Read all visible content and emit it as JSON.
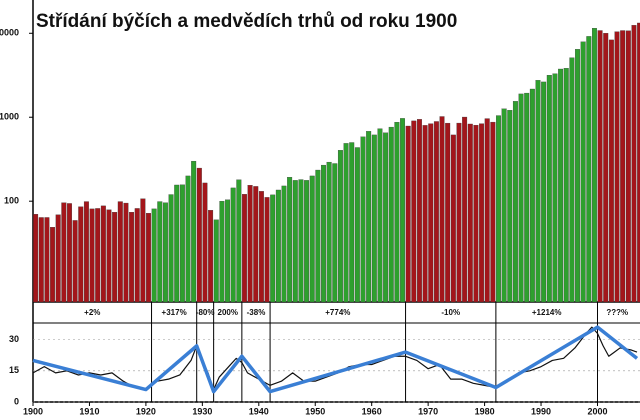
{
  "chart_data": [
    {
      "type": "bar",
      "title": "Střídání býčích a medvědích trhů od roku 1900",
      "log": true,
      "xlim": [
        1900,
        2007
      ],
      "ylim": [
        6.3,
        20000
      ],
      "yticks": [
        100,
        1000,
        10000
      ],
      "colors": {
        "up": "#2ea02e",
        "down": "#a3161b"
      },
      "x": [
        1900,
        1901,
        1902,
        1903,
        1904,
        1905,
        1906,
        1907,
        1908,
        1909,
        1910,
        1911,
        1912,
        1913,
        1914,
        1915,
        1916,
        1917,
        1918,
        1919,
        1920,
        1921,
        1922,
        1923,
        1924,
        1925,
        1926,
        1927,
        1928,
        1929,
        1930,
        1931,
        1932,
        1933,
        1934,
        1935,
        1936,
        1937,
        1938,
        1939,
        1940,
        1941,
        1942,
        1943,
        1944,
        1945,
        1946,
        1947,
        1948,
        1949,
        1950,
        1951,
        1952,
        1953,
        1954,
        1955,
        1956,
        1957,
        1958,
        1959,
        1960,
        1961,
        1962,
        1963,
        1964,
        1965,
        1966,
        1967,
        1968,
        1969,
        1970,
        1971,
        1972,
        1973,
        1974,
        1975,
        1976,
        1977,
        1978,
        1979,
        1980,
        1981,
        1982,
        1983,
        1984,
        1985,
        1986,
        1987,
        1988,
        1989,
        1990,
        1991,
        1992,
        1993,
        1994,
        1995,
        1996,
        1997,
        1998,
        1999,
        2000,
        2001,
        2002,
        2003,
        2004,
        2005,
        2006,
        2007
      ],
      "values": [
        70,
        64,
        64,
        49,
        69,
        96,
        94,
        59,
        86,
        99,
        81,
        82,
        88,
        79,
        74,
        99,
        95,
        74,
        82,
        107,
        72,
        81,
        99,
        96,
        120,
        156,
        157,
        200,
        300,
        248,
        165,
        78,
        60,
        100,
        104,
        144,
        180,
        121,
        155,
        150,
        131,
        111,
        119,
        136,
        152,
        193,
        177,
        181,
        177,
        200,
        235,
        269,
        292,
        281,
        404,
        488,
        500,
        436,
        584,
        679,
        616,
        731,
        652,
        763,
        874,
        969,
        786,
        905,
        944,
        800,
        839,
        890,
        1020,
        851,
        616,
        852,
        1005,
        831,
        805,
        839,
        964,
        875,
        1047,
        1259,
        1212,
        1547,
        1896,
        1939,
        2169,
        2753,
        2634,
        3169,
        3301,
        3754,
        3834,
        5117,
        6448,
        7908,
        9181,
        11497,
        10787,
        10022,
        8342,
        10454,
        10783,
        10718,
        12463,
        13265
      ]
    },
    {
      "type": "line",
      "xlim": [
        1900,
        2007
      ],
      "ylim": [
        0,
        38
      ],
      "yticks": [
        0,
        15,
        30
      ],
      "xticks": [
        1900,
        1910,
        1920,
        1930,
        1940,
        1950,
        1960,
        1970,
        1980,
        1990,
        2000
      ],
      "regimes": [
        {
          "start": 1900,
          "end": 1921,
          "trend": "down",
          "label": "+2%"
        },
        {
          "start": 1921,
          "end": 1929,
          "trend": "up",
          "label": "+317%"
        },
        {
          "start": 1929,
          "end": 1932,
          "trend": "down",
          "label": "-80%"
        },
        {
          "start": 1932,
          "end": 1937,
          "trend": "up",
          "label": "200%"
        },
        {
          "start": 1937,
          "end": 1942,
          "trend": "down",
          "label": "-38%"
        },
        {
          "start": 1942,
          "end": 1966,
          "trend": "up",
          "label": "+774%"
        },
        {
          "start": 1966,
          "end": 1982,
          "trend": "down",
          "label": "-10%"
        },
        {
          "start": 1982,
          "end": 2000,
          "trend": "up",
          "label": "+1214%"
        },
        {
          "start": 2000,
          "end": 2007,
          "trend": "down",
          "label": "???%"
        }
      ],
      "series": [
        {
          "color": "#111111",
          "width": 1.2,
          "x": [
            1900,
            1902,
            1904,
            1906,
            1908,
            1910,
            1912,
            1914,
            1916,
            1918,
            1920,
            1922,
            1924,
            1926,
            1928,
            1929,
            1930,
            1931,
            1932,
            1933,
            1935,
            1936,
            1937,
            1938,
            1940,
            1942,
            1944,
            1946,
            1948,
            1950,
            1952,
            1954,
            1956,
            1958,
            1960,
            1962,
            1964,
            1966,
            1968,
            1970,
            1972,
            1974,
            1976,
            1978,
            1980,
            1982,
            1984,
            1986,
            1988,
            1990,
            1992,
            1994,
            1996,
            1998,
            1999,
            2000,
            2001,
            2002,
            2003,
            2004,
            2006,
            2007
          ],
          "values": [
            14,
            17,
            14,
            15,
            13,
            14,
            13,
            14,
            10,
            7,
            6,
            10,
            11,
            13,
            20,
            27,
            20,
            14,
            6,
            12,
            18,
            21,
            19,
            14,
            11,
            8,
            10,
            14,
            10,
            10,
            12,
            14,
            17,
            18,
            18,
            20,
            22,
            22,
            20,
            16,
            18,
            11,
            11,
            9,
            8,
            7,
            10,
            14,
            15,
            17,
            20,
            21,
            26,
            33,
            36,
            33,
            27,
            22,
            24,
            26,
            25,
            24
          ]
        },
        {
          "color": "#3a7fd5",
          "width": 3.5,
          "x": [
            1900,
            1920,
            1929,
            1932,
            1937,
            1942,
            1966,
            1982,
            2000,
            2007
          ],
          "values": [
            20,
            6,
            27,
            5,
            22,
            5,
            24,
            7,
            36,
            21
          ]
        }
      ]
    }
  ]
}
